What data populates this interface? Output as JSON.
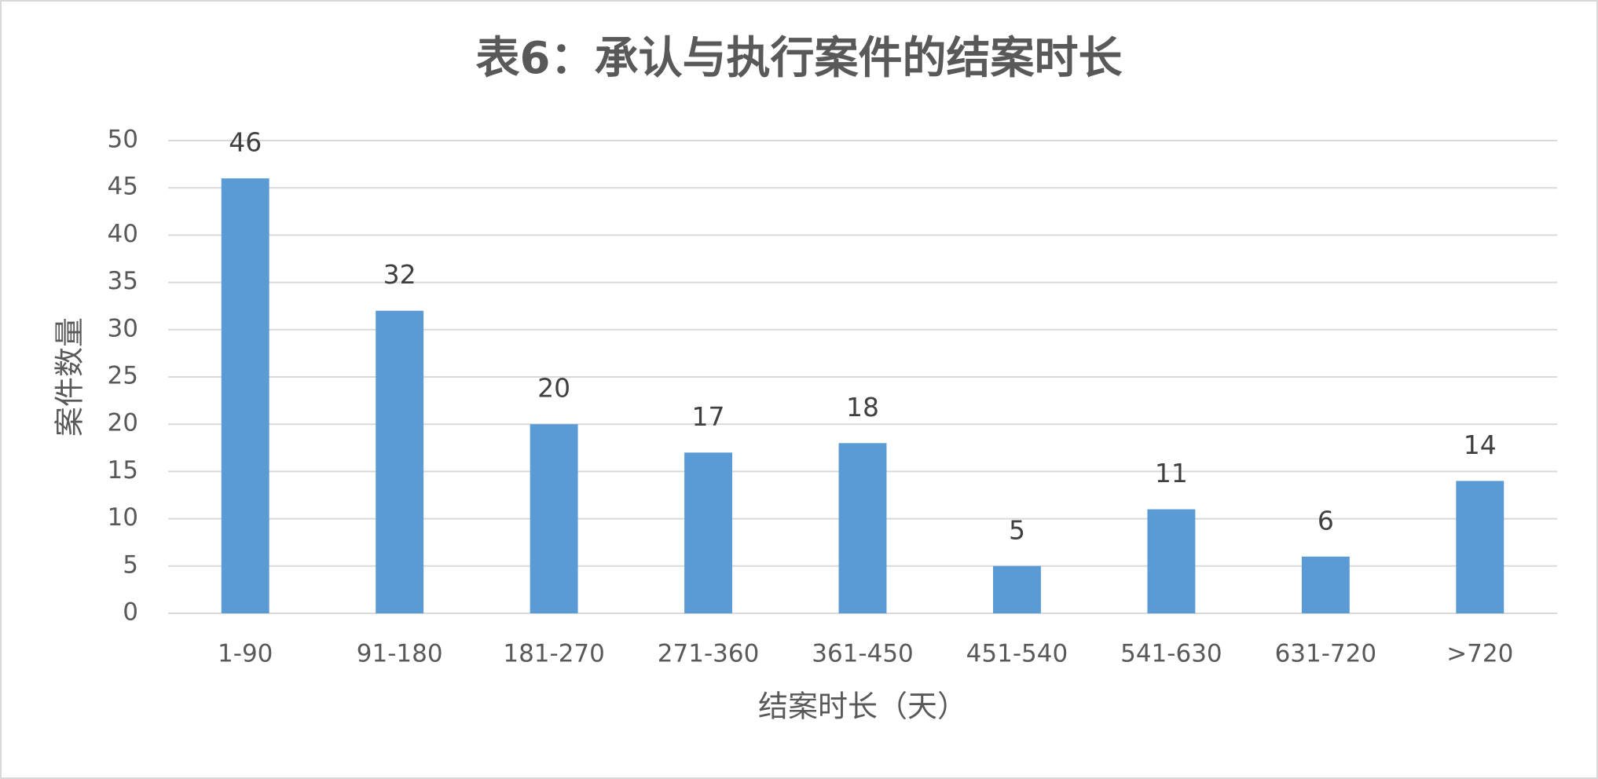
{
  "chart_data": {
    "type": "bar",
    "title": "表6：承认与执行案件的结案时长",
    "x_label": "结案时长（天）",
    "y_label": "案件数量",
    "categories": [
      "1-90",
      "91-180",
      "181-270",
      "271-360",
      "361-450",
      "451-540",
      "541-630",
      "631-720",
      ">720"
    ],
    "values": [
      46,
      32,
      20,
      17,
      18,
      5,
      11,
      6,
      14
    ],
    "color": "#5b9bd5",
    "ylim": [
      0,
      50
    ],
    "yticks": [
      0,
      5,
      10,
      15,
      20,
      25,
      30,
      35,
      40,
      45,
      50
    ],
    "grid": true
  }
}
